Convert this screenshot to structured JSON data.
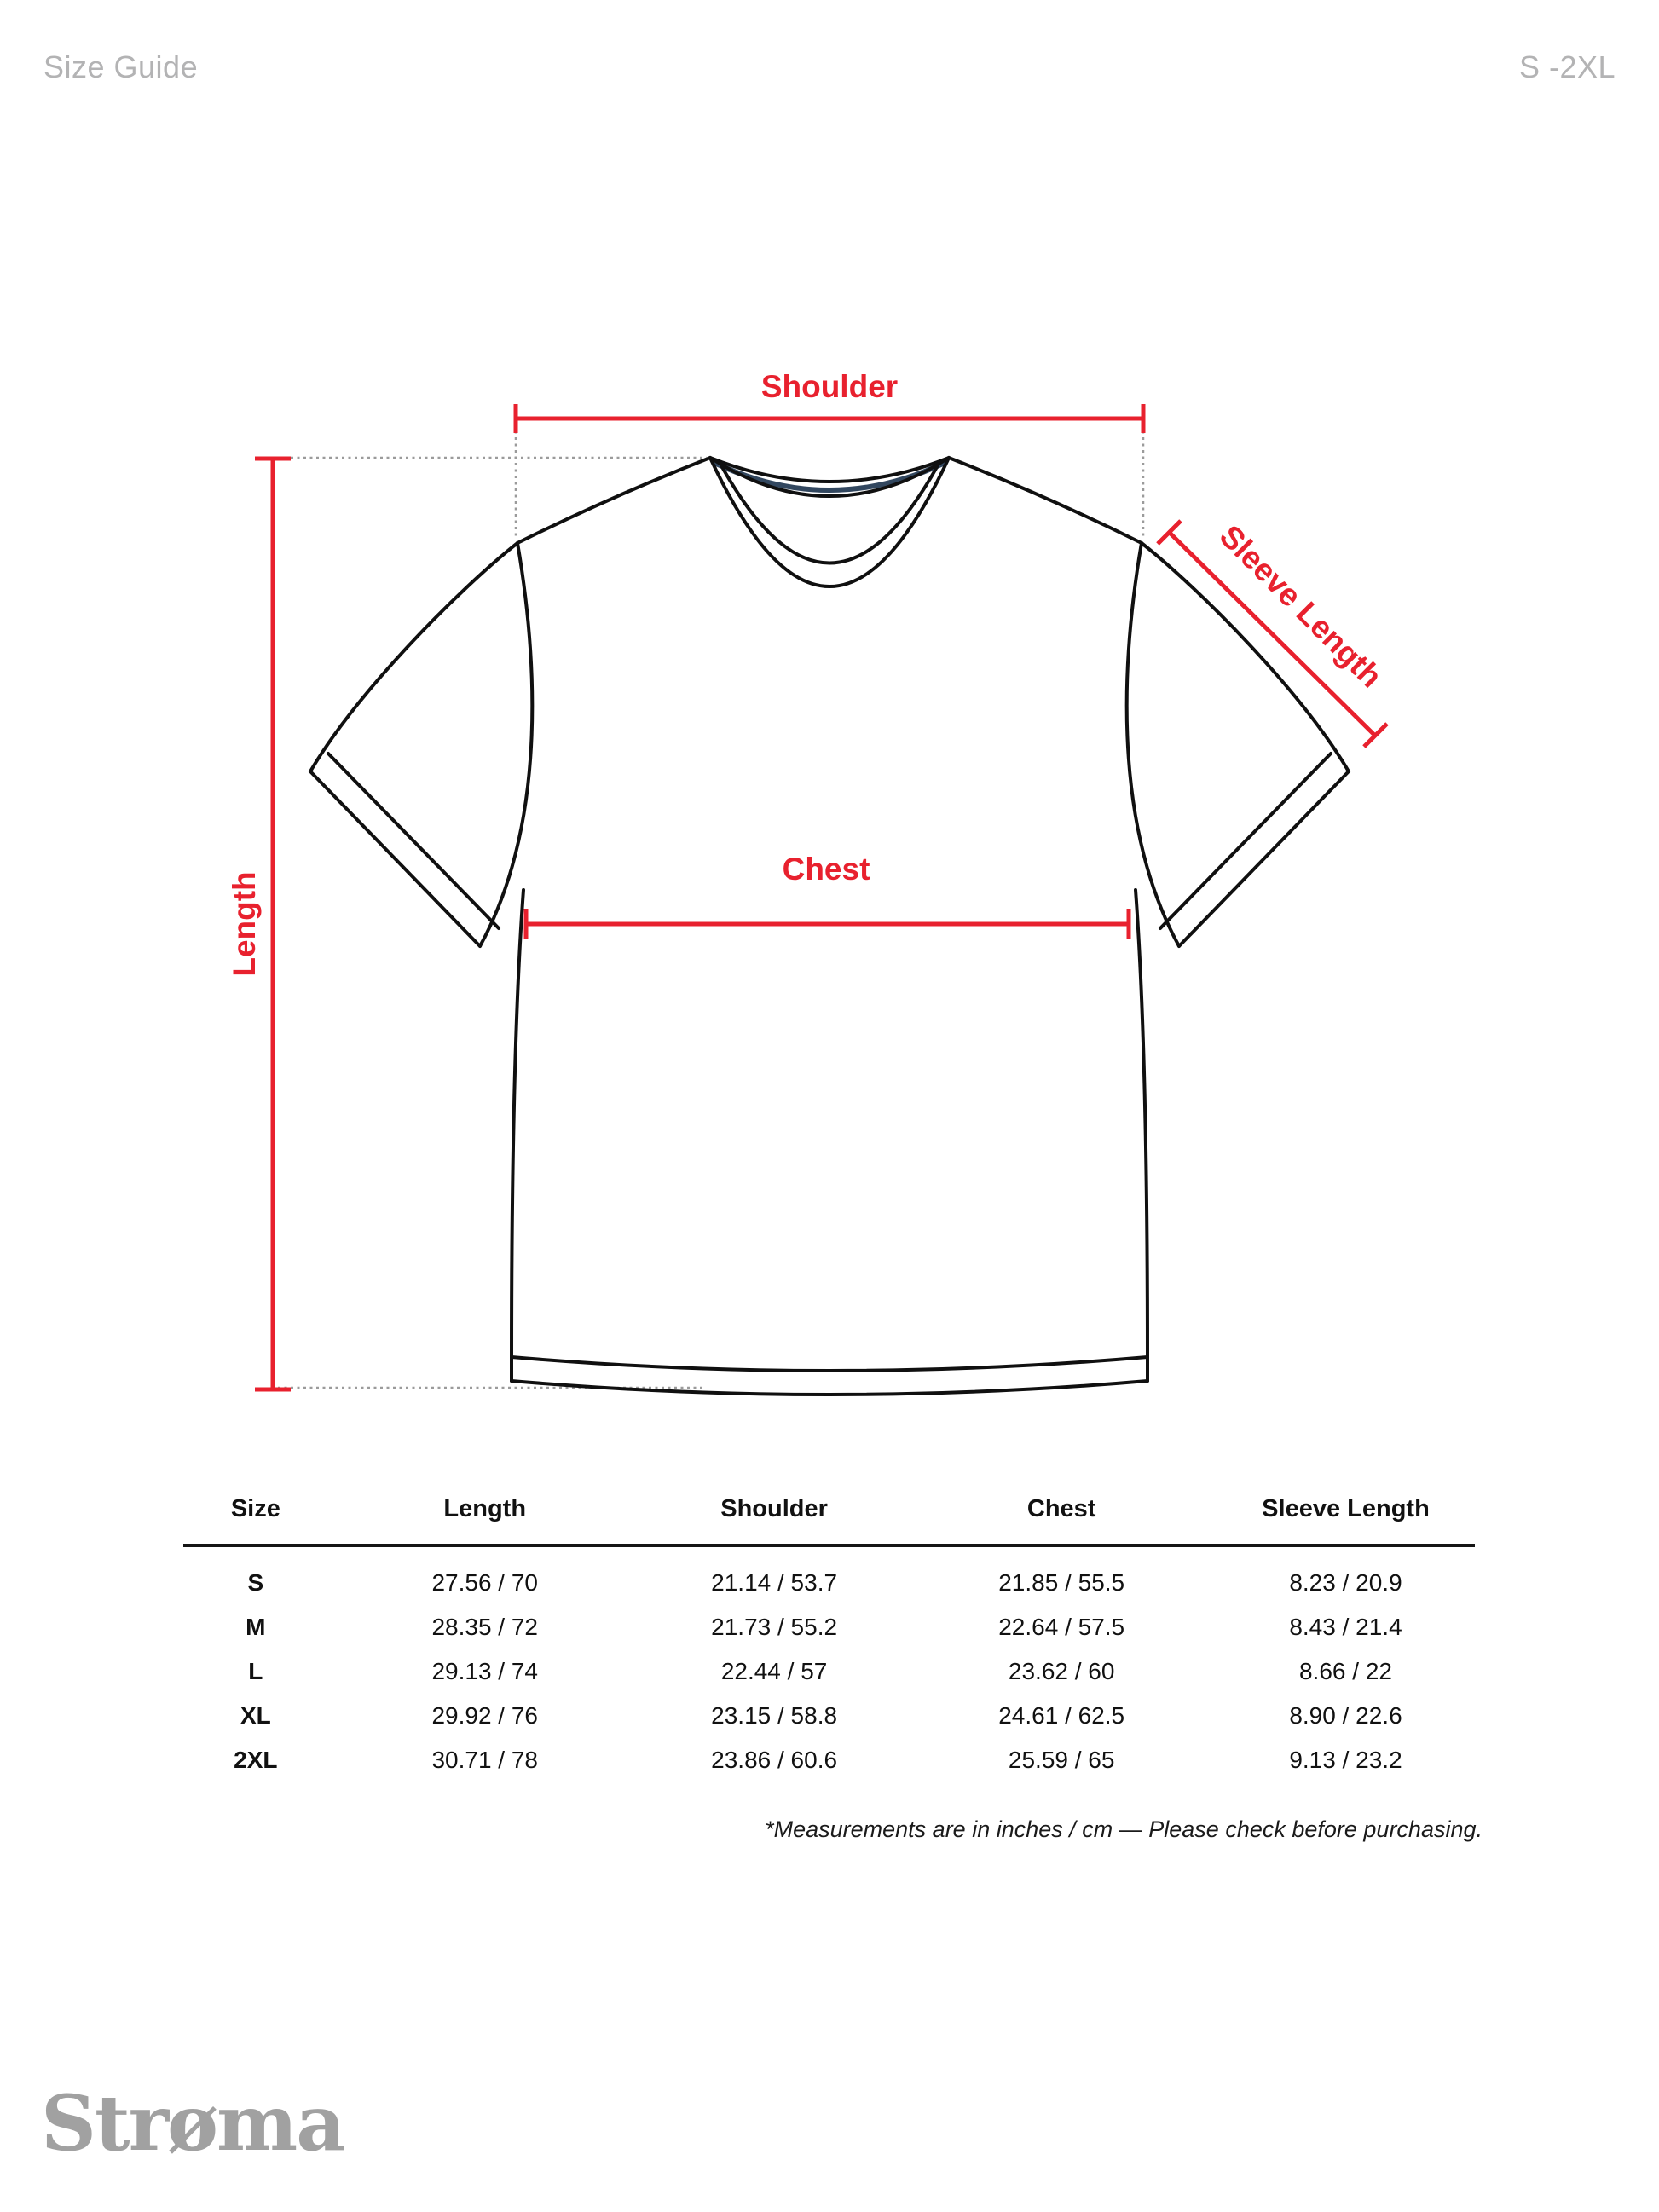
{
  "page": {
    "title": "Size Guide",
    "size_range": "S -2XL"
  },
  "diagram": {
    "labels": {
      "shoulder": "Shoulder",
      "length": "Length",
      "chest": "Chest",
      "sleeve_length": "Sleeve Length"
    },
    "colors": {
      "annotation_red": "#e8212e",
      "collar_navy": "#32475f",
      "outline_black": "#101010",
      "dotted_gray": "#9b9b9b"
    }
  },
  "table": {
    "headers": [
      "Size",
      "Length",
      "Shoulder",
      "Chest",
      "Sleeve Length"
    ],
    "rows": [
      [
        "S",
        "27.56 / 70",
        "21.14 / 53.7",
        "21.85 / 55.5",
        "8.23 / 20.9"
      ],
      [
        "M",
        "28.35 / 72",
        "21.73 / 55.2",
        "22.64 / 57.5",
        "8.43 / 21.4"
      ],
      [
        "L",
        "29.13 / 74",
        "22.44 / 57",
        "23.62 / 60",
        "8.66 / 22"
      ],
      [
        "XL",
        "29.92 / 76",
        "23.15 / 58.8",
        "24.61 / 62.5",
        "8.90 / 22.6"
      ],
      [
        "2XL",
        "30.71 / 78",
        "23.86 / 60.6",
        "25.59 / 65",
        "9.13 / 23.2"
      ]
    ]
  },
  "footnote": "*Measurements are in inches / cm — Please check before purchasing.",
  "brand": "Strøma"
}
